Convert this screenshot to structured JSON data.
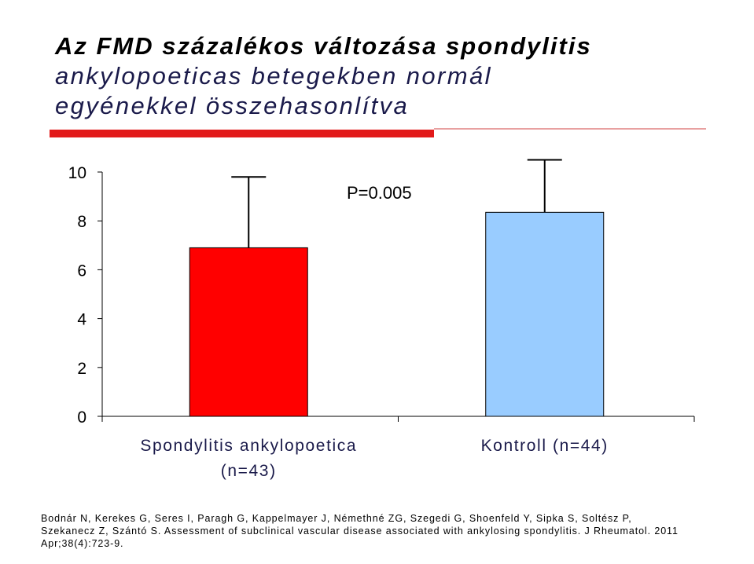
{
  "slide": {
    "title_line1": "Az FMD százalékos változása spondylitis",
    "title_line2": "ankylopoeticas betegekben normál",
    "title_line3": "egyénekkel összehasonlítva",
    "accent_color": "#e21a1a",
    "reference_line1": "Bodnár N, Kerekes G, Seres I, Paragh G, Kappelmayer J, Némethné ZG, Szegedi G, Shoenfeld Y, Sipka S, Soltész P,",
    "reference_line2": "Szekanecz Z, Szántó S. Assessment of subclinical vascular disease associated with ankylosing spondylitis. J Rheumatol. 2011",
    "reference_line3": "Apr;38(4):723-9."
  },
  "chart_data": {
    "type": "bar",
    "categories": [
      "Spondylitis ankylopoetica (n=43)",
      "Kontroll (n=44)"
    ],
    "category_lines": [
      [
        "Spondylitis ankylopoetica",
        "(n=43)"
      ],
      [
        "Kontroll (n=44)"
      ]
    ],
    "values": [
      6.9,
      8.35
    ],
    "error_upper": [
      9.8,
      10.5
    ],
    "colors": [
      "#ff0000",
      "#99ccff"
    ],
    "ylim": [
      0,
      10
    ],
    "yticks": [
      0,
      2,
      4,
      6,
      8,
      10
    ],
    "annotation": "P=0.005",
    "grid": false,
    "legend": "none"
  }
}
